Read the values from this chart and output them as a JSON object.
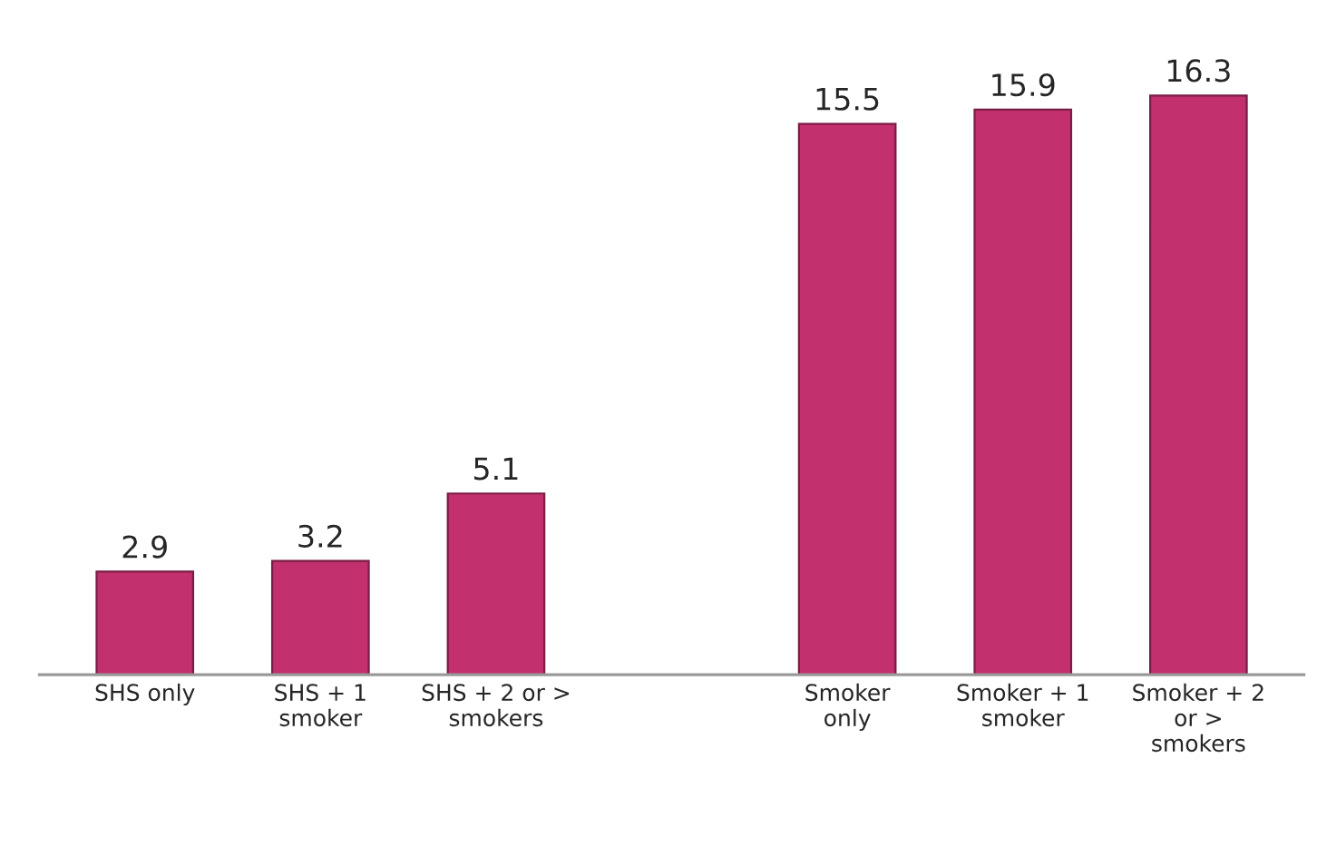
{
  "chart_data": {
    "type": "bar",
    "categories": [
      "SHS only",
      "SHS + 1\nsmoker",
      "SHS + 2 or >\nsmokers",
      null,
      "Smoker\nonly",
      "Smoker + 1\nsmoker",
      "Smoker + 2\nor >\nsmokers"
    ],
    "values": [
      2.9,
      3.2,
      5.1,
      null,
      15.5,
      15.9,
      16.3
    ],
    "color": "#c2306e",
    "data_labels": true,
    "grid": false,
    "legend": false
  }
}
